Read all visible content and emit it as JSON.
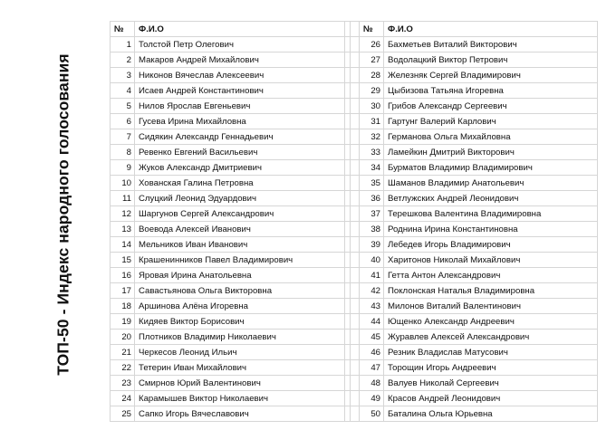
{
  "title": "ТОП-50 - Индекс народного голосования",
  "headers": {
    "num": "№",
    "name": "Ф.И.О"
  },
  "left_rows": [
    {
      "n": "1",
      "name": "Толстой Петр Олегович"
    },
    {
      "n": "2",
      "name": "Макаров Андрей Михайлович"
    },
    {
      "n": "3",
      "name": "Никонов Вячеслав Алексеевич"
    },
    {
      "n": "4",
      "name": "Исаев Андрей Константинович"
    },
    {
      "n": "5",
      "name": "Нилов Ярослав Евгеньевич"
    },
    {
      "n": "6",
      "name": "Гусева Ирина Михайловна"
    },
    {
      "n": "7",
      "name": "Сидякин Александр Геннадьевич"
    },
    {
      "n": "8",
      "name": "Ревенко Евгений Васильевич"
    },
    {
      "n": "9",
      "name": "Жуков Александр Дмитриевич"
    },
    {
      "n": "10",
      "name": "Хованская Галина Петровна"
    },
    {
      "n": "11",
      "name": "Слуцкий Леонид Эдуардович"
    },
    {
      "n": "12",
      "name": "Шаргунов Сергей Александрович"
    },
    {
      "n": "13",
      "name": "Воевода Алексей Иванович"
    },
    {
      "n": "14",
      "name": "Мельников Иван Иванович"
    },
    {
      "n": "15",
      "name": "Крашенинников Павел Владимирович"
    },
    {
      "n": "16",
      "name": "Яровая Ирина Анатольевна"
    },
    {
      "n": "17",
      "name": "Савастьянова Ольга Викторовна"
    },
    {
      "n": "18",
      "name": "Аршинова Алёна Игоревна"
    },
    {
      "n": "19",
      "name": "Кидяев Виктор Борисович"
    },
    {
      "n": "20",
      "name": "Плотников Владимир Николаевич"
    },
    {
      "n": "21",
      "name": "Черкесов Леонид Ильич"
    },
    {
      "n": "22",
      "name": "Тетерин Иван Михайлович"
    },
    {
      "n": "23",
      "name": "Смирнов Юрий Валентинович"
    },
    {
      "n": "24",
      "name": "Карамышев Виктор Николаевич"
    },
    {
      "n": "25",
      "name": "Сапко Игорь Вячеславович"
    }
  ],
  "right_rows": [
    {
      "n": "26",
      "name": "Бахметьев Виталий Викторович"
    },
    {
      "n": "27",
      "name": "Водолацкий Виктор Петрович"
    },
    {
      "n": "28",
      "name": "Железняк Сергей Владимирович"
    },
    {
      "n": "29",
      "name": "Цыбизова Татьяна Игоревна"
    },
    {
      "n": "30",
      "name": "Грибов Александр Сергеевич"
    },
    {
      "n": "31",
      "name": "Гартунг Валерий Карлович"
    },
    {
      "n": "32",
      "name": "Германова Ольга Михайловна"
    },
    {
      "n": "33",
      "name": "Ламейкин Дмитрий Викторович"
    },
    {
      "n": "34",
      "name": "Бурматов Владимир Владимирович"
    },
    {
      "n": "35",
      "name": "Шаманов Владимир Анатольевич"
    },
    {
      "n": "36",
      "name": "Ветлужских Андрей Леонидович"
    },
    {
      "n": "37",
      "name": "Терешкова Валентина Владимировна"
    },
    {
      "n": "38",
      "name": "Роднина Ирина Константиновна"
    },
    {
      "n": "39",
      "name": "Лебедев Игорь Владимирович"
    },
    {
      "n": "40",
      "name": "Харитонов Николай Михайлович"
    },
    {
      "n": "41",
      "name": "Гетта Антон Александрович"
    },
    {
      "n": "42",
      "name": "Поклонская Наталья Владимировна"
    },
    {
      "n": "43",
      "name": "Милонов Виталий Валентинович"
    },
    {
      "n": "44",
      "name": "Ющенко Александр Андреевич"
    },
    {
      "n": "45",
      "name": "Журавлев Алексей Александрович"
    },
    {
      "n": "46",
      "name": "Резник Владислав Матусович"
    },
    {
      "n": "47",
      "name": "Торощин Игорь Андреевич"
    },
    {
      "n": "48",
      "name": "Валуев Николай Сергеевич"
    },
    {
      "n": "49",
      "name": "Красов Андрей Леонидович"
    },
    {
      "n": "50",
      "name": "Баталина Ольга Юрьевна"
    }
  ]
}
